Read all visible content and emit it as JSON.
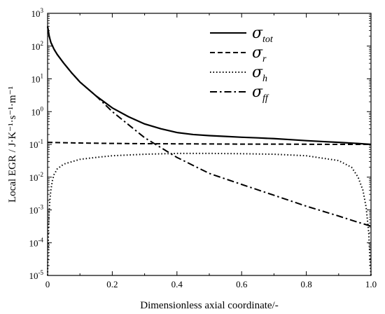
{
  "chart_data": {
    "type": "line",
    "xlabel": "Dimensionless axial coordinate/-",
    "ylabel": "Local EGR / J·K⁻¹·s⁻¹·m⁻¹",
    "xlim": [
      0,
      1.0
    ],
    "ylim": [
      1e-05,
      1000
    ],
    "yscale": "log",
    "grid": false,
    "legend_position": "top-right",
    "x_ticks": [
      "0",
      "0.2",
      "0.4",
      "0.6",
      "0.8",
      "1.0"
    ],
    "y_ticks": [
      {
        "base": "10",
        "exp": "-5"
      },
      {
        "base": "10",
        "exp": "-4"
      },
      {
        "base": "10",
        "exp": "-3"
      },
      {
        "base": "10",
        "exp": "-2"
      },
      {
        "base": "10",
        "exp": "-1"
      },
      {
        "base": "10",
        "exp": "0"
      },
      {
        "base": "10",
        "exp": "1"
      },
      {
        "base": "10",
        "exp": "2"
      },
      {
        "base": "10",
        "exp": "3"
      }
    ],
    "series": [
      {
        "name": "σ",
        "sub": "tot",
        "style": "solid",
        "x": [
          0,
          0.005,
          0.01,
          0.02,
          0.03,
          0.05,
          0.075,
          0.1,
          0.15,
          0.2,
          0.25,
          0.3,
          0.35,
          0.4,
          0.45,
          0.5,
          0.55,
          0.6,
          0.65,
          0.7,
          0.75,
          0.8,
          0.85,
          0.9,
          0.95,
          1.0
        ],
        "y": [
          400,
          200,
          130,
          80,
          55,
          30,
          15,
          8,
          3,
          1.3,
          0.7,
          0.42,
          0.3,
          0.23,
          0.2,
          0.185,
          0.175,
          0.165,
          0.158,
          0.15,
          0.14,
          0.13,
          0.122,
          0.115,
          0.108,
          0.1
        ]
      },
      {
        "name": "σ",
        "sub": "r",
        "style": "dashed",
        "x": [
          0,
          0.1,
          0.2,
          0.3,
          0.4,
          0.5,
          0.6,
          0.7,
          0.8,
          0.9,
          1.0
        ],
        "y": [
          0.115,
          0.11,
          0.107,
          0.105,
          0.104,
          0.103,
          0.102,
          0.102,
          0.101,
          0.1,
          0.1
        ]
      },
      {
        "name": "σ",
        "sub": "h",
        "style": "dotted",
        "x": [
          0,
          0.003,
          0.006,
          0.01,
          0.015,
          0.02,
          0.03,
          0.05,
          0.1,
          0.15,
          0.2,
          0.3,
          0.4,
          0.5,
          0.6,
          0.7,
          0.8,
          0.9,
          0.94,
          0.96,
          0.975,
          0.985,
          0.993,
          0.997,
          1.0
        ],
        "y": [
          1e-05,
          0.0003,
          0.0015,
          0.004,
          0.008,
          0.012,
          0.018,
          0.025,
          0.035,
          0.04,
          0.045,
          0.05,
          0.053,
          0.053,
          0.052,
          0.05,
          0.045,
          0.032,
          0.02,
          0.01,
          0.004,
          0.0012,
          0.0002,
          3e-05,
          1e-05
        ]
      },
      {
        "name": "σ",
        "sub": "ff",
        "style": "dashdot",
        "x": [
          0,
          0.005,
          0.01,
          0.02,
          0.03,
          0.05,
          0.075,
          0.1,
          0.15,
          0.2,
          0.3,
          0.4,
          0.5,
          0.6,
          0.7,
          0.8,
          0.9,
          0.95,
          1.0
        ],
        "y": [
          400,
          200,
          130,
          80,
          55,
          30,
          15,
          8,
          3,
          1.0,
          0.16,
          0.04,
          0.013,
          0.006,
          0.0028,
          0.0013,
          0.00065,
          0.00045,
          0.00032
        ]
      }
    ]
  }
}
